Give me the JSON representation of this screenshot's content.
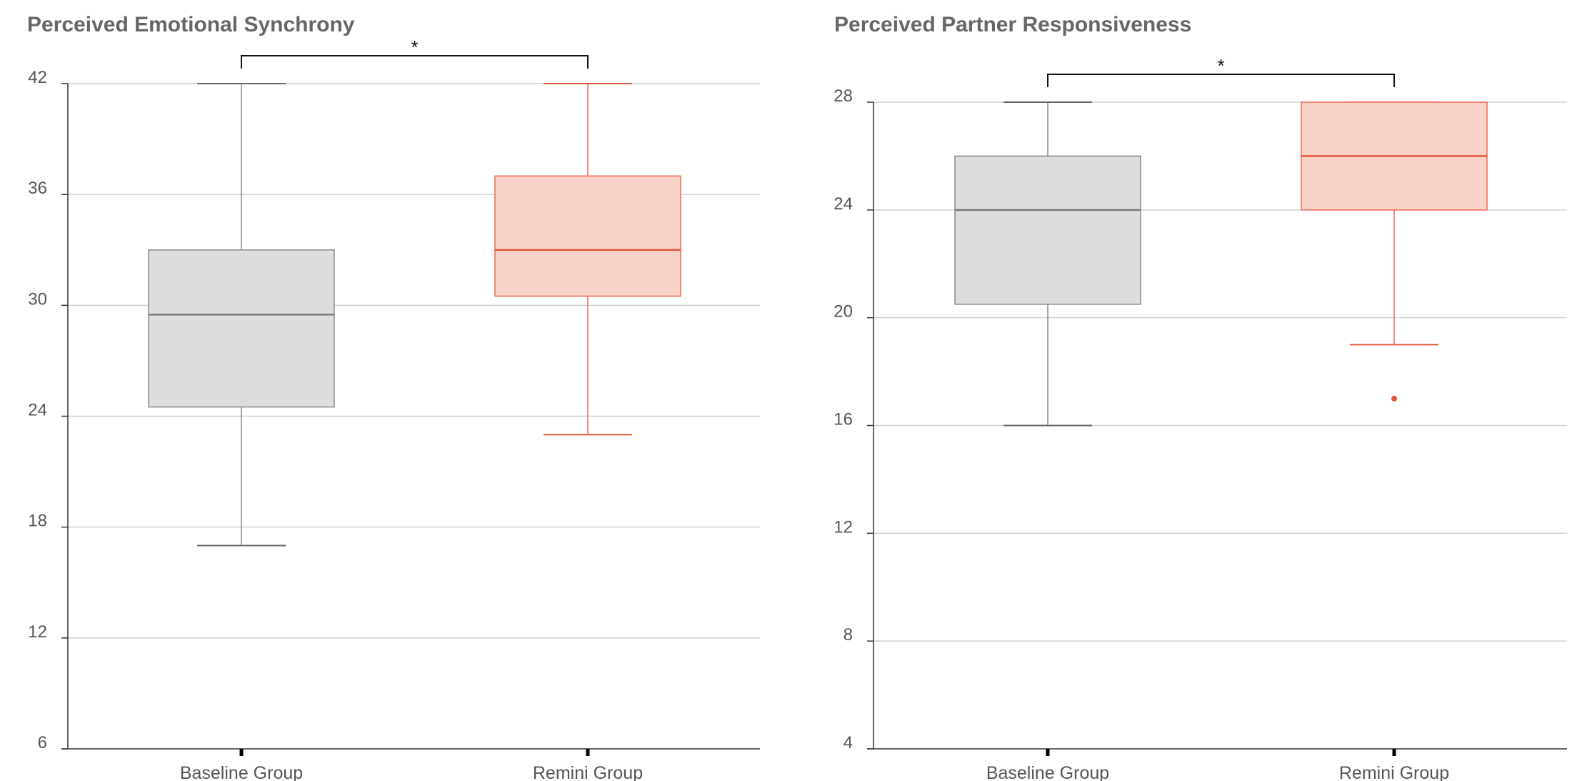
{
  "colors": {
    "baseline_fill": "#dddddd",
    "baseline_stroke": "#888888",
    "baseline_median": "#777777",
    "remini_fill": "#f9d3ca",
    "remini_stroke": "#ee6a4f",
    "remini_median": "#e4583a",
    "grid": "#d0d0d0",
    "axis": "#333333",
    "bracket": "#111111"
  },
  "chart_data": [
    {
      "type": "box",
      "title": "Perceived Emotional Synchrony",
      "categories": [
        "Baseline Group",
        "Remini Group"
      ],
      "ylim": [
        6,
        42
      ],
      "yticks": [
        6,
        12,
        18,
        24,
        30,
        36,
        42
      ],
      "grid": true,
      "series": [
        {
          "name": "Baseline Group",
          "whisker_low": 17,
          "q1": 24.5,
          "median": 29.5,
          "q3": 33,
          "whisker_high": 42,
          "outliers": []
        },
        {
          "name": "Remini Group",
          "whisker_low": 23,
          "q1": 30.5,
          "median": 33,
          "q3": 37,
          "whisker_high": 42,
          "outliers": []
        }
      ],
      "significance": {
        "from": "Baseline Group",
        "to": "Remini Group",
        "label": "*"
      }
    },
    {
      "type": "box",
      "title": "Perceived Partner Responsiveness",
      "categories": [
        "Baseline Group",
        "Remini Group"
      ],
      "ylim": [
        4,
        28
      ],
      "yticks": [
        4,
        8,
        12,
        16,
        20,
        24,
        28
      ],
      "grid": true,
      "series": [
        {
          "name": "Baseline Group",
          "whisker_low": 16,
          "q1": 20.5,
          "median": 24,
          "q3": 26,
          "whisker_high": 28,
          "outliers": []
        },
        {
          "name": "Remini Group",
          "whisker_low": 19,
          "q1": 24,
          "median": 26,
          "q3": 28,
          "whisker_high": 28,
          "outliers": [
            17
          ]
        }
      ],
      "significance": {
        "from": "Baseline Group",
        "to": "Remini Group",
        "label": "*"
      }
    }
  ]
}
